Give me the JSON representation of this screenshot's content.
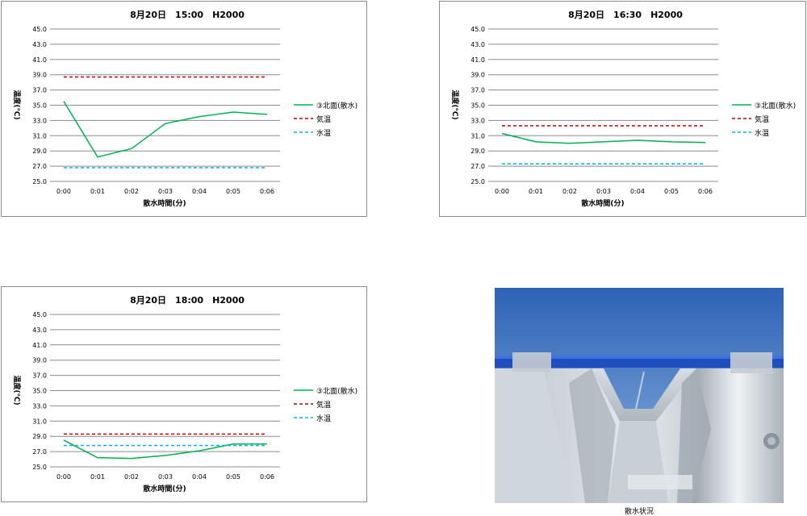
{
  "charts": [
    {
      "title": "8月20日　15:00　H2000"
    },
    {
      "title": "8月20日　16:30　H2000"
    },
    {
      "title": "8月20日　18:00　H2000"
    }
  ],
  "chart_data": [
    {
      "type": "line",
      "title": "8月20日　15:00　H2000",
      "xlabel": "散水時間(分)",
      "ylabel": "温度(℃)",
      "categories": [
        "0:00",
        "0:01",
        "0:02",
        "0:03",
        "0:04",
        "0:05",
        "0:06"
      ],
      "y_ticks": [
        "45.0",
        "43.0",
        "41.0",
        "39.0",
        "37.0",
        "35.0",
        "33.0",
        "31.0",
        "29.0",
        "27.0",
        "25.0"
      ],
      "ylim": [
        25,
        45
      ],
      "grid": true,
      "legend_position": "right",
      "series": [
        {
          "name": "③北面(散水)",
          "color": "#00b050",
          "style": "solid",
          "values": [
            35.5,
            28.2,
            29.3,
            32.6,
            33.5,
            34.1,
            33.8
          ]
        },
        {
          "name": "気温",
          "color": "#c00000",
          "style": "dashed",
          "values": [
            38.7,
            38.7,
            38.7,
            38.7,
            38.7,
            38.7,
            38.7
          ]
        },
        {
          "name": "水温",
          "color": "#00b0f0",
          "style": "dashed",
          "values": [
            26.8,
            26.8,
            26.8,
            26.8,
            26.8,
            26.8,
            26.8
          ]
        }
      ]
    },
    {
      "type": "line",
      "title": "8月20日　16:30　H2000",
      "xlabel": "散水時間(分)",
      "ylabel": "温度(℃)",
      "categories": [
        "0:00",
        "0:01",
        "0:02",
        "0:03",
        "0:04",
        "0:05",
        "0:06"
      ],
      "y_ticks": [
        "45.0",
        "43.0",
        "41.0",
        "39.0",
        "37.0",
        "35.0",
        "33.0",
        "31.0",
        "29.0",
        "27.0",
        "25.0"
      ],
      "ylim": [
        25,
        45
      ],
      "grid": true,
      "legend_position": "right",
      "series": [
        {
          "name": "③北面(散水)",
          "color": "#00b050",
          "style": "solid",
          "values": [
            31.3,
            30.2,
            30.0,
            30.2,
            30.4,
            30.2,
            30.1
          ]
        },
        {
          "name": "気温",
          "color": "#c00000",
          "style": "dashed",
          "values": [
            32.3,
            32.3,
            32.3,
            32.3,
            32.3,
            32.3,
            32.3
          ]
        },
        {
          "name": "水温",
          "color": "#00b0f0",
          "style": "dashed",
          "values": [
            27.3,
            27.3,
            27.3,
            27.3,
            27.3,
            27.3,
            27.3
          ]
        }
      ]
    },
    {
      "type": "line",
      "title": "8月20日　18:00　H2000",
      "xlabel": "散水時間(分)",
      "ylabel": "温度(℃)",
      "categories": [
        "0:00",
        "0:01",
        "0:02",
        "0:03",
        "0:04",
        "0:05",
        "0:06"
      ],
      "y_ticks": [
        "45.0",
        "43.0",
        "41.0",
        "39.0",
        "37.0",
        "35.0",
        "33.0",
        "31.0",
        "29.0",
        "27.0",
        "25.0"
      ],
      "ylim": [
        25,
        45
      ],
      "grid": true,
      "legend_position": "right",
      "series": [
        {
          "name": "③北面(散水)",
          "color": "#00b050",
          "style": "solid",
          "values": [
            28.5,
            26.2,
            26.1,
            26.5,
            27.1,
            28.0,
            28.0
          ]
        },
        {
          "name": "気温",
          "color": "#c00000",
          "style": "dashed",
          "values": [
            29.3,
            29.3,
            29.3,
            29.3,
            29.3,
            29.3,
            29.3
          ]
        },
        {
          "name": "水温",
          "color": "#00b0f0",
          "style": "dashed",
          "values": [
            27.8,
            27.8,
            27.8,
            27.8,
            27.8,
            27.8,
            27.8
          ]
        }
      ]
    }
  ],
  "photo": {
    "caption": "散水状況"
  }
}
